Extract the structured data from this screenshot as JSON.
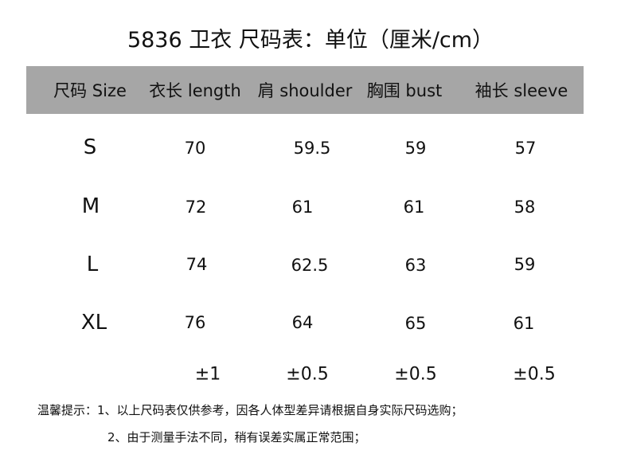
{
  "title": "5836 卫衣  尺码表：单位（厘米/cm）",
  "header_bg": "#a6a6a6",
  "columns": [
    "尺码 Size",
    "衣长 length",
    "肩 shoulder",
    "胸围 bust",
    "袖长 sleeve"
  ],
  "rows": [
    {
      "size": "S",
      "length": "70",
      "shoulder": "59.5",
      "bust": "59",
      "sleeve": "57"
    },
    {
      "size": "M",
      "length": "72",
      "shoulder": "61",
      "bust": "61",
      "sleeve": "58"
    },
    {
      "size": "L",
      "length": "74",
      "shoulder": "62.5",
      "bust": "63",
      "sleeve": "59"
    },
    {
      "size": "XL",
      "length": "76",
      "shoulder": "64",
      "bust": "65",
      "sleeve": "61"
    }
  ],
  "tolerance": {
    "length": "±1",
    "shoulder": "±0.5",
    "bust": "±0.5",
    "sleeve": "±0.5"
  },
  "notes": [
    "温馨提示：1、以上尺码表仅供参考，因各人体型差异请根据自身实际尺码选购；",
    "2、由于测量手法不同，稍有误差实属正常范围；"
  ]
}
